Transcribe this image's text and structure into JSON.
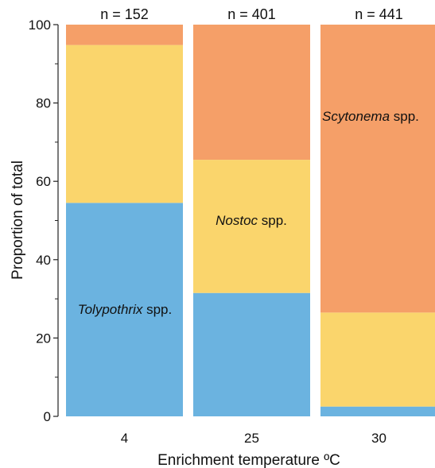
{
  "chart_data": {
    "type": "bar",
    "stacked": true,
    "categories": [
      "4",
      "25",
      "30"
    ],
    "counts": [
      "n = 152",
      "n = 401",
      "n = 441"
    ],
    "series": [
      {
        "color": "#6BB3E0",
        "values": [
          54.5,
          31.5,
          2.5
        ]
      },
      {
        "color": "#FAD56C",
        "values": [
          40.3,
          34.0,
          24.0
        ]
      },
      {
        "color": "#F59F68",
        "values": [
          5.2,
          34.5,
          73.5
        ]
      }
    ],
    "segment_labels": [
      {
        "category": "4",
        "series_index": 0,
        "italic": "Tolypothrix",
        "suffix": " spp."
      },
      {
        "category": "25",
        "series_index": 1,
        "italic": "Nostoc",
        "suffix": " spp."
      },
      {
        "category": "30",
        "series_index": 2,
        "italic": "Scytonema",
        "suffix": " spp."
      }
    ],
    "xlabel": "Enrichment temperature ºC",
    "ylabel": "Proportion of total",
    "ylim": [
      0,
      100
    ],
    "yticks_major": [
      0,
      20,
      40,
      60,
      80,
      100
    ],
    "yticks_minor": [
      10,
      30,
      50,
      70,
      90
    ],
    "grid": false,
    "legend": "none"
  }
}
